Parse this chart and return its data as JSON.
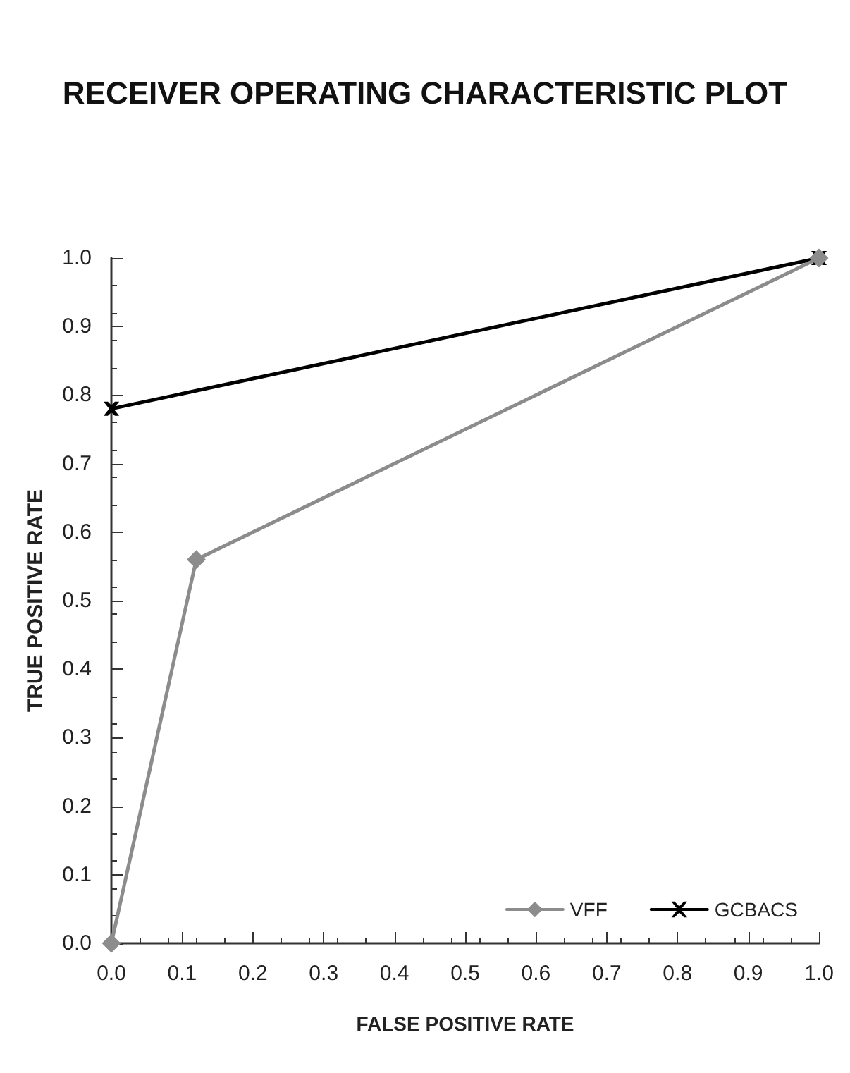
{
  "chart_data": {
    "type": "line",
    "title": "RECEIVER OPERATING CHARACTERISTIC PLOT",
    "xlabel": "FALSE POSITIVE RATE",
    "ylabel": "TRUE POSITIVE RATE",
    "series": [
      {
        "name": "VFF",
        "color": "#8c8c8c",
        "x": [
          0,
          0.12,
          1
        ],
        "values": [
          0,
          0.56,
          1
        ],
        "marker": "diamond"
      },
      {
        "name": "GCBACS",
        "color": "#000000",
        "x": [
          0,
          1
        ],
        "values": [
          0.78,
          1
        ],
        "marker": "cross"
      }
    ],
    "xlim": [
      0,
      1
    ],
    "ylim": [
      0,
      1
    ],
    "xticks": [
      {
        "value": 0,
        "label": "0.0"
      },
      0.1,
      0.2,
      0.3,
      0.4,
      0.5,
      0.6,
      0.7,
      0.8,
      0.9,
      {
        "value": 1,
        "label": "1.0"
      }
    ],
    "yticks": [
      {
        "value": 0,
        "label": "0.0"
      },
      0.1,
      0.2,
      0.3,
      0.4,
      0.5,
      0.6,
      0.7,
      0.8,
      0.9,
      {
        "value": 1,
        "label": "1.0"
      }
    ],
    "grid": false,
    "legend": "bottom right",
    "line_style": "solid"
  }
}
